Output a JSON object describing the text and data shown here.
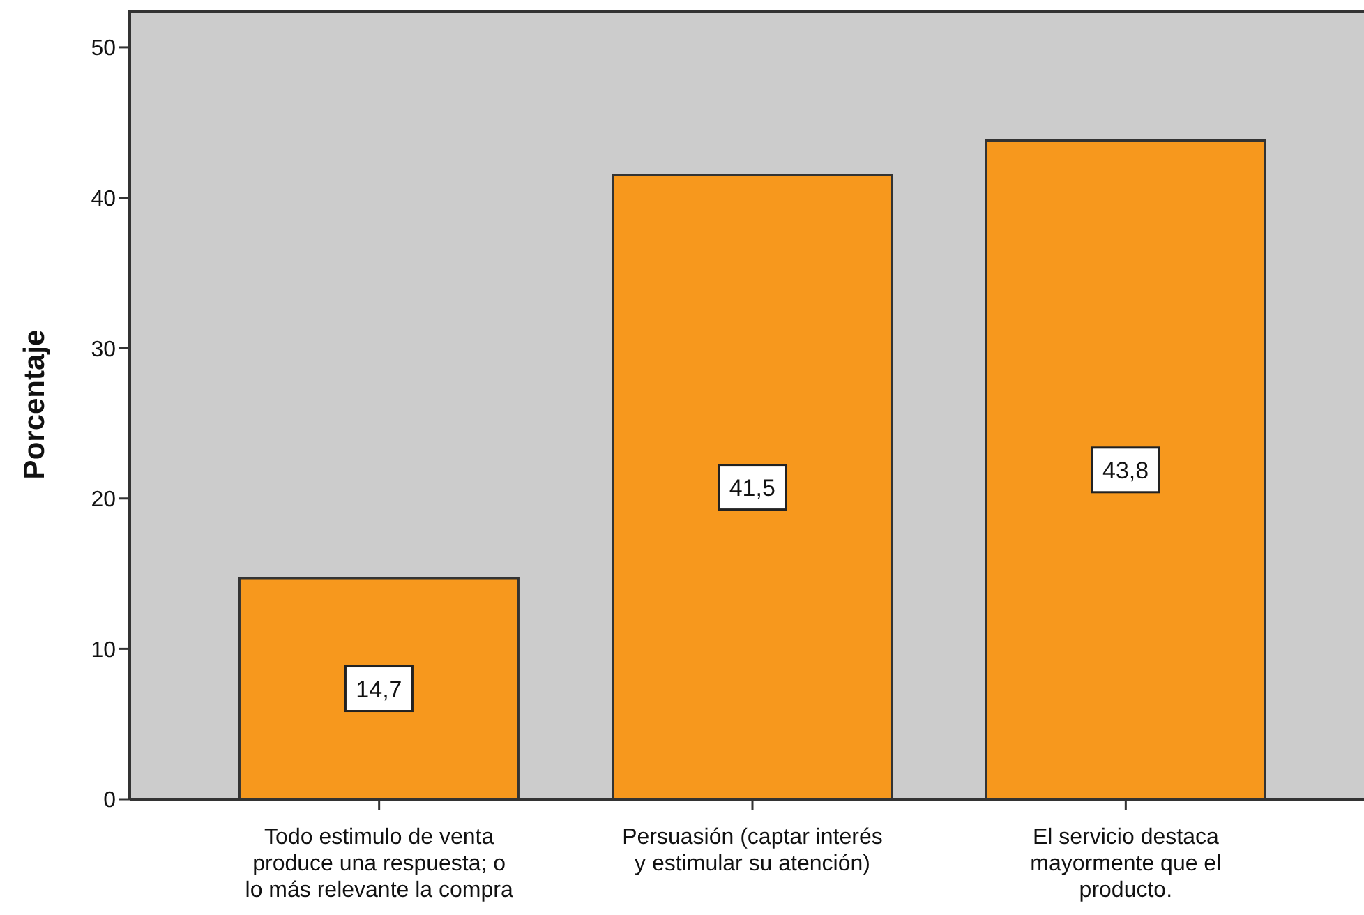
{
  "chart_data": {
    "type": "bar",
    "ylabel": "Porcentaje",
    "categories": [
      "Todo estimulo de venta produce una respuesta; o lo más relevante la compra",
      "Persuasión (captar interés y estimular su atención)",
      "El servicio destaca mayormente que el producto."
    ],
    "values": [
      14.7,
      41.5,
      43.8
    ],
    "value_labels": [
      "14,7",
      "41,5",
      "43,8"
    ],
    "color": "#f7981d",
    "ylim": [
      0,
      52.5
    ],
    "yticks": [
      0,
      10,
      20,
      30,
      40,
      50
    ]
  }
}
